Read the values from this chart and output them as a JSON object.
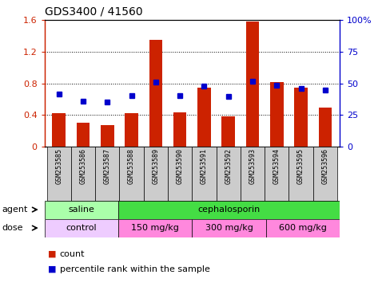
{
  "title": "GDS3400 / 41560",
  "samples": [
    "GSM253585",
    "GSM253586",
    "GSM253587",
    "GSM253588",
    "GSM253589",
    "GSM253590",
    "GSM253591",
    "GSM253592",
    "GSM253593",
    "GSM253594",
    "GSM253595",
    "GSM253596"
  ],
  "bar_values": [
    0.42,
    0.3,
    0.27,
    0.42,
    1.35,
    0.43,
    0.75,
    0.38,
    1.58,
    0.82,
    0.75,
    0.5
  ],
  "blue_values": [
    0.67,
    0.58,
    0.57,
    0.65,
    0.82,
    0.65,
    0.77,
    0.64,
    0.83,
    0.78,
    0.74,
    0.72
  ],
  "bar_color": "#cc2200",
  "blue_color": "#0000cc",
  "ylim": [
    0,
    1.6
  ],
  "yticks": [
    0,
    0.4,
    0.8,
    1.2,
    1.6
  ],
  "y2ticks": [
    0,
    25,
    50,
    75,
    100
  ],
  "ytick_labels": [
    "0",
    "0.4",
    "0.8",
    "1.2",
    "1.6"
  ],
  "y2tick_labels": [
    "0",
    "25",
    "50",
    "75",
    "100%"
  ],
  "agent_groups": [
    {
      "label": "saline",
      "start": 0,
      "end": 3,
      "color": "#aaffaa"
    },
    {
      "label": "cephalosporin",
      "start": 3,
      "end": 12,
      "color": "#44dd44"
    }
  ],
  "dose_groups": [
    {
      "label": "control",
      "start": 0,
      "end": 3,
      "color": "#eeccff"
    },
    {
      "label": "150 mg/kg",
      "start": 3,
      "end": 6,
      "color": "#ff88dd"
    },
    {
      "label": "300 mg/kg",
      "start": 6,
      "end": 9,
      "color": "#ff88dd"
    },
    {
      "label": "600 mg/kg",
      "start": 9,
      "end": 12,
      "color": "#ff88dd"
    }
  ],
  "tick_area_color": "#cccccc",
  "legend_count_color": "#cc2200",
  "legend_pct_color": "#0000cc"
}
